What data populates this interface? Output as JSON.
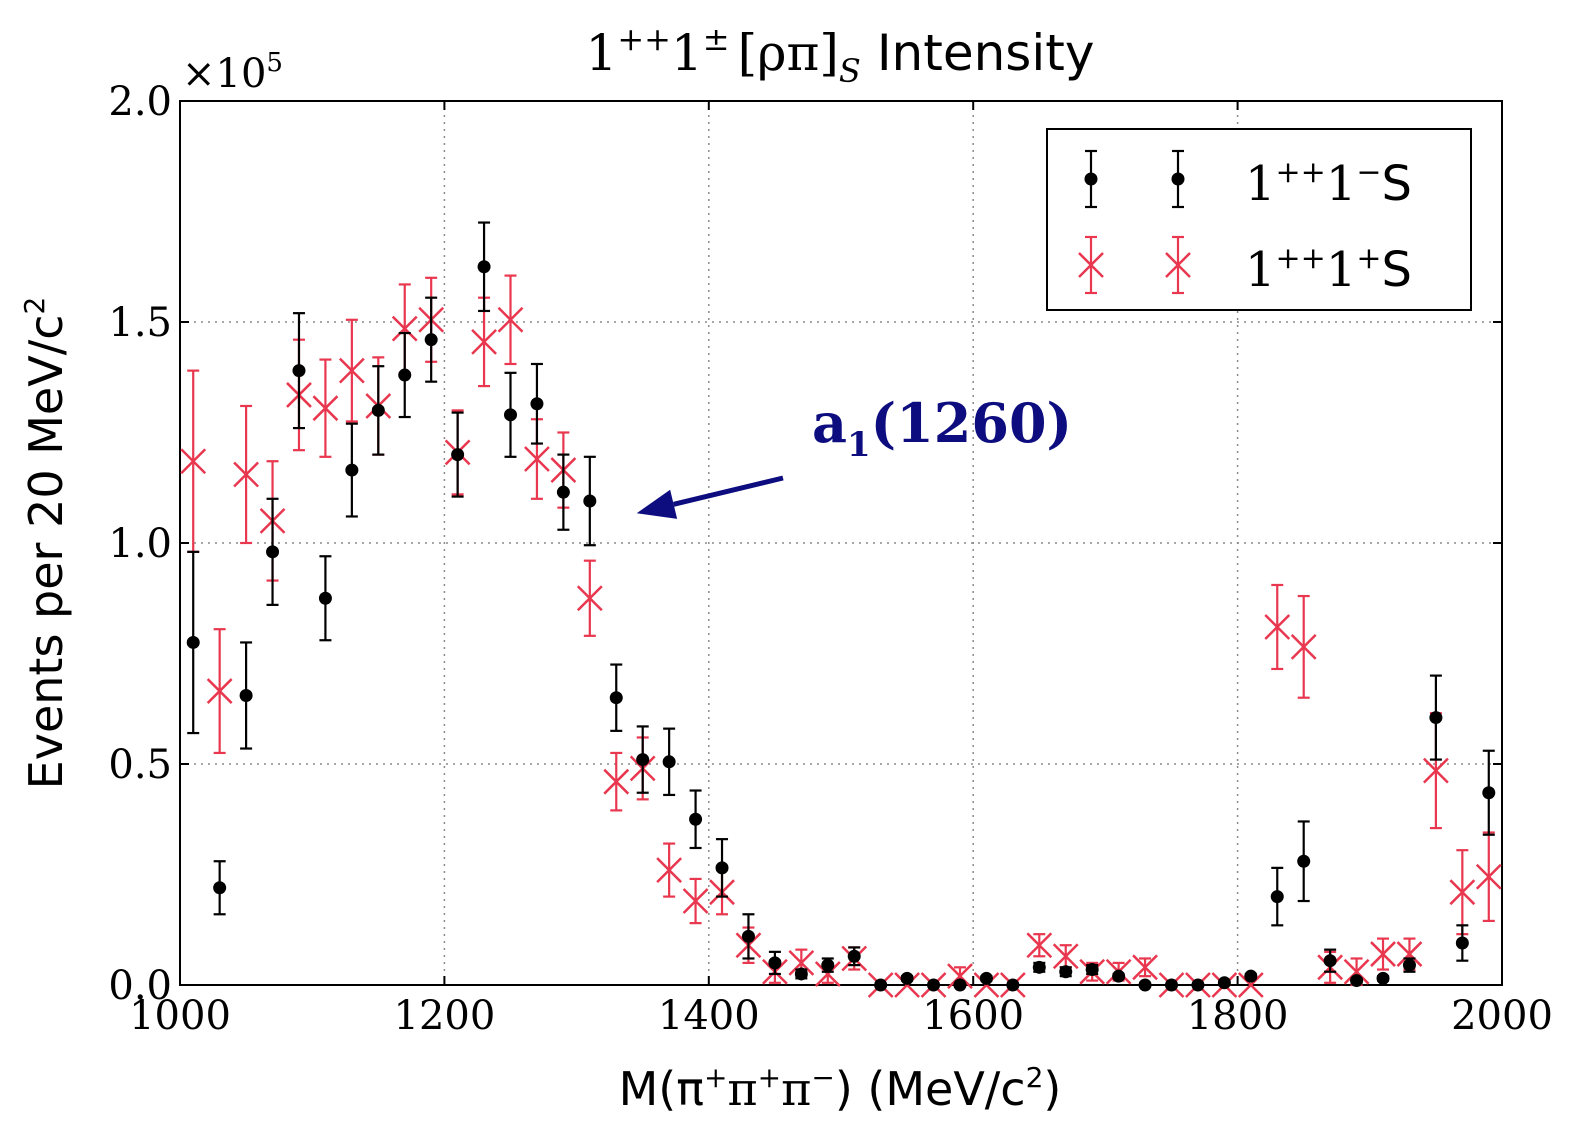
{
  "chart_data": {
    "type": "scatter",
    "title": {
      "base1": "1",
      "sup1": "++",
      "base2": "1",
      "sup2": "±",
      "bracket": "[ρπ]",
      "sub": "S",
      "word": "Intensity"
    },
    "xlabel": {
      "pre": "M(π",
      "s1": "+",
      "mid1": "π",
      "s2": "+",
      "mid2": "π",
      "s3": "−",
      "post": ") (MeV/c",
      "s4": "2",
      "end": ")"
    },
    "ylabel": {
      "main": "Events per 20 MeV/c",
      "sup": "2"
    },
    "y_multiplier": {
      "base": "×10",
      "exp": "5"
    },
    "xlim": [
      1000,
      2000
    ],
    "ylim": [
      0,
      2.0
    ],
    "x_ticks": [
      1000,
      1200,
      1400,
      1600,
      1800,
      2000
    ],
    "x_tick_labels": [
      "1000",
      "1200",
      "1400",
      "1600",
      "1800",
      "2000"
    ],
    "y_ticks": [
      0,
      0.5,
      1.0,
      1.5,
      2.0
    ],
    "y_tick_labels": [
      "0.0",
      "0.5",
      "1.0",
      "1.5",
      "2.0"
    ],
    "grid": true,
    "legend_position": "top-right",
    "series": [
      {
        "id": "minus",
        "label": {
          "base": "1",
          "sup1": "++",
          "mid": "1",
          "sup2": "−",
          "end": "S"
        },
        "color": "#000000",
        "marker": "dot",
        "x": [
          1010,
          1030,
          1050,
          1070,
          1090,
          1110,
          1130,
          1150,
          1170,
          1190,
          1210,
          1230,
          1250,
          1270,
          1290,
          1310,
          1330,
          1350,
          1370,
          1390,
          1410,
          1430,
          1450,
          1470,
          1490,
          1510,
          1530,
          1550,
          1570,
          1590,
          1610,
          1630,
          1650,
          1670,
          1690,
          1710,
          1730,
          1750,
          1770,
          1790,
          1810,
          1830,
          1850,
          1870,
          1890,
          1910,
          1930,
          1950,
          1970,
          1990
        ],
        "y": [
          0.775,
          0.22,
          0.655,
          0.98,
          1.39,
          0.875,
          1.165,
          1.3,
          1.38,
          1.46,
          1.2,
          1.625,
          1.29,
          1.315,
          1.115,
          1.095,
          0.65,
          0.51,
          0.505,
          0.375,
          0.265,
          0.11,
          0.05,
          0.025,
          0.045,
          0.065,
          0.0,
          0.015,
          0.0,
          0.0,
          0.015,
          0.0,
          0.04,
          0.03,
          0.035,
          0.02,
          0.0,
          0.0,
          0.0,
          0.005,
          0.02,
          0.2,
          0.28,
          0.055,
          0.01,
          0.015,
          0.045,
          0.605,
          0.095,
          0.435
        ],
        "yerr": [
          0.205,
          0.06,
          0.12,
          0.12,
          0.13,
          0.095,
          0.105,
          0.1,
          0.095,
          0.095,
          0.095,
          0.1,
          0.095,
          0.09,
          0.085,
          0.1,
          0.075,
          0.075,
          0.075,
          0.065,
          0.065,
          0.05,
          0.025,
          0.01,
          0.015,
          0.02,
          0.0,
          0.005,
          0.0,
          0.0,
          0.005,
          0.0,
          0.01,
          0.01,
          0.01,
          0.005,
          0.0,
          0.0,
          0.0,
          0.005,
          0.005,
          0.065,
          0.09,
          0.025,
          0.005,
          0.005,
          0.015,
          0.095,
          0.04,
          0.095
        ]
      },
      {
        "id": "plus",
        "label": {
          "base": "1",
          "sup1": "++",
          "mid": "1",
          "sup2": "+",
          "end": "S"
        },
        "color": "#e8374e",
        "marker": "x",
        "x": [
          1010,
          1030,
          1050,
          1070,
          1090,
          1110,
          1130,
          1150,
          1170,
          1190,
          1210,
          1230,
          1250,
          1270,
          1290,
          1310,
          1330,
          1350,
          1370,
          1390,
          1410,
          1430,
          1450,
          1470,
          1490,
          1510,
          1530,
          1550,
          1570,
          1590,
          1610,
          1630,
          1650,
          1670,
          1690,
          1710,
          1730,
          1750,
          1770,
          1790,
          1810,
          1830,
          1850,
          1870,
          1890,
          1910,
          1930,
          1950,
          1970,
          1990
        ],
        "y": [
          1.185,
          0.665,
          1.155,
          1.05,
          1.335,
          1.305,
          1.39,
          1.31,
          1.485,
          1.505,
          1.205,
          1.455,
          1.505,
          1.19,
          1.165,
          0.875,
          0.46,
          0.49,
          0.26,
          0.19,
          0.21,
          0.09,
          0.03,
          0.05,
          0.025,
          0.06,
          0.0,
          0.0,
          0.0,
          0.02,
          0.0,
          0.0,
          0.09,
          0.065,
          0.03,
          0.03,
          0.04,
          0.0,
          0.0,
          0.0,
          0.0,
          0.81,
          0.765,
          0.04,
          0.03,
          0.07,
          0.07,
          0.485,
          0.21,
          0.245
        ],
        "yerr": [
          0.205,
          0.14,
          0.155,
          0.135,
          0.125,
          0.11,
          0.115,
          0.11,
          0.1,
          0.095,
          0.095,
          0.1,
          0.1,
          0.09,
          0.085,
          0.085,
          0.065,
          0.07,
          0.06,
          0.05,
          0.05,
          0.04,
          0.025,
          0.03,
          0.02,
          0.025,
          0.0,
          0.0,
          0.0,
          0.02,
          0.0,
          0.0,
          0.025,
          0.025,
          0.02,
          0.02,
          0.02,
          0.0,
          0.0,
          0.0,
          0.0,
          0.095,
          0.115,
          0.035,
          0.03,
          0.035,
          0.035,
          0.13,
          0.095,
          0.1
        ]
      }
    ],
    "annotation": {
      "base": "a",
      "sub": "1",
      "rest": "(1260)",
      "arrow_to_x": 1350,
      "arrow_to_y": 1.09,
      "color": "#0d0d80"
    }
  }
}
